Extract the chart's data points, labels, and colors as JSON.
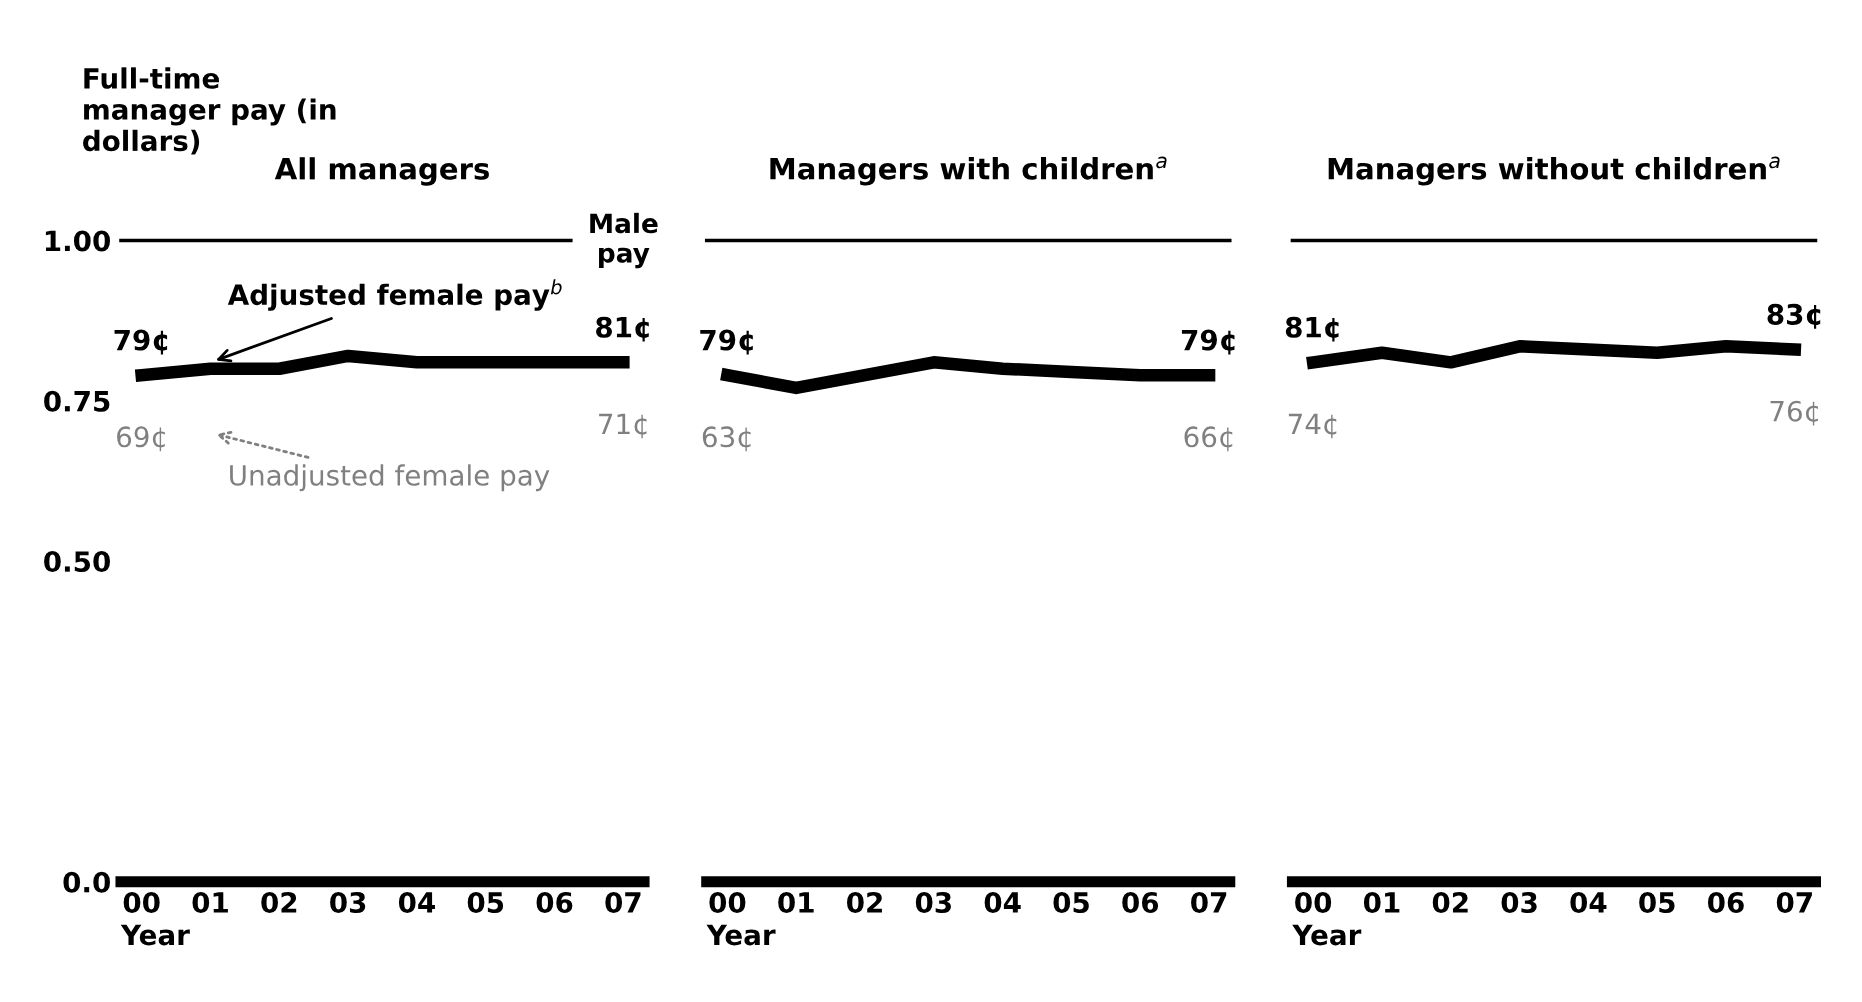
{
  "chart_data": [
    {
      "type": "line",
      "title": "All managers",
      "ylabel": "Full-time manager pay (in dollars)",
      "xlabel": "Year",
      "categories": [
        "00",
        "01",
        "02",
        "03",
        "04",
        "05",
        "06",
        "07"
      ],
      "ylim": [
        0,
        1.0
      ],
      "yticks": [
        {
          "value": 0,
          "label": "0.0"
        },
        {
          "value": 0.5,
          "label": "0.50"
        },
        {
          "value": 0.75,
          "label": "0.75"
        },
        {
          "value": 1.0,
          "label": "1.00"
        }
      ],
      "marker": "none",
      "line_style": "solid",
      "series": [
        {
          "name": "Adjusted female pay$^{b}$",
          "color": "#000000",
          "values": [
            0.79,
            0.8,
            0.8,
            0.82,
            0.81,
            0.81,
            0.81,
            0.81
          ]
        }
      ],
      "annotations": [
        "79¢",
        "81¢",
        "69¢",
        "71¢",
        "Unadjusted female pay"
      ],
      "ref_lines": [
        {
          "axis": "y",
          "value": 1.0,
          "label": "Male pay",
          "color": "#000000"
        }
      ]
    },
    {
      "type": "line",
      "title": "Managers with children$^{a}$",
      "xlabel": "Year",
      "categories": [
        "00",
        "01",
        "02",
        "03",
        "04",
        "05",
        "06",
        "07"
      ],
      "ylim": [
        0,
        1.0
      ],
      "tick_labels": "x",
      "marker": "none",
      "line_style": "solid",
      "series": [
        {
          "color": "#000000",
          "values": [
            0.79,
            0.77,
            0.79,
            0.81,
            0.8,
            0.795,
            0.79,
            0.79
          ]
        }
      ],
      "annotations": [
        "79¢",
        "79¢",
        "63¢",
        "66¢"
      ],
      "ref_lines": [
        {
          "axis": "y",
          "value": 1.0,
          "color": "#000000"
        }
      ]
    },
    {
      "type": "line",
      "title": "Managers without children$^{a}$",
      "xlabel": "Year",
      "categories": [
        "00",
        "01",
        "02",
        "03",
        "04",
        "05",
        "06",
        "07"
      ],
      "ylim": [
        0,
        1.0
      ],
      "tick_labels": "x",
      "marker": "none",
      "line_style": "solid",
      "series": [
        {
          "color": "#000000",
          "values": [
            0.81,
            0.825,
            0.81,
            0.835,
            0.83,
            0.825,
            0.835,
            0.83
          ]
        }
      ],
      "annotations": [
        "81¢",
        "83¢",
        "74¢",
        "76¢"
      ],
      "ref_lines": [
        {
          "axis": "y",
          "value": 1.0,
          "color": "#000000"
        }
      ]
    }
  ]
}
